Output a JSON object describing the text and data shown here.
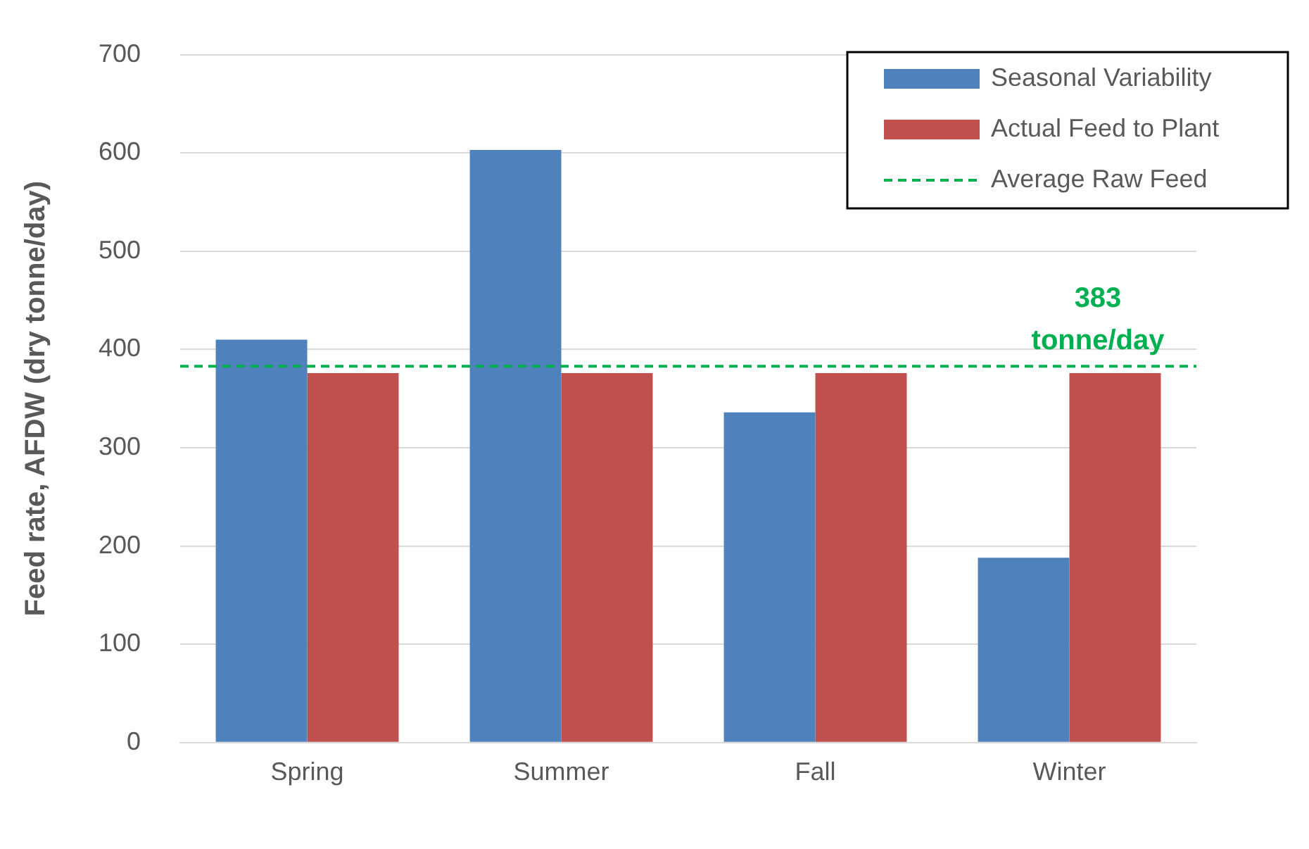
{
  "chart_data": {
    "type": "bar",
    "ylabel": "Feed rate, AFDW (dry tonne/day)",
    "categories": [
      "Spring",
      "Summer",
      "Fall",
      "Winter"
    ],
    "series": [
      {
        "name": "Seasonal Variability",
        "color": "#4f81bd",
        "values": [
          410,
          603,
          336,
          188
        ]
      },
      {
        "name": "Actual Feed to Plant",
        "color": "#c0504d",
        "values": [
          376,
          376,
          376,
          376
        ]
      }
    ],
    "ylim": [
      0,
      700
    ],
    "yticks": [
      0,
      100,
      200,
      300,
      400,
      500,
      600,
      700
    ],
    "grid": "y",
    "legend": "top right",
    "ref_lines": [
      {
        "axis": "y",
        "value": 383,
        "label": "Average Raw Feed",
        "color": "#00b050",
        "line_style": "dashed"
      }
    ],
    "annotations": [
      {
        "text": "383 tonne/day",
        "y": 383
      }
    ]
  }
}
